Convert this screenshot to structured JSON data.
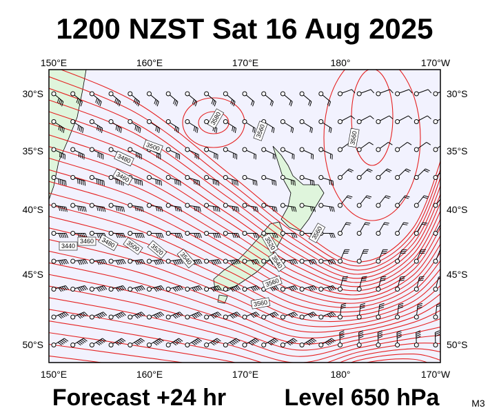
{
  "header": {
    "title": "1200 NZST Sat 16 Aug 2025"
  },
  "map": {
    "lon_labels": [
      "150°E",
      "160°E",
      "170°E",
      "180°",
      "170°W"
    ],
    "lat_labels": [
      "30°S",
      "35°S",
      "40°S",
      "45°S",
      "50°S"
    ],
    "contour_labels": [
      "3580",
      "3560",
      "3500",
      "3480",
      "3460",
      "3440",
      "3460",
      "3480",
      "3500",
      "3520",
      "3540",
      "3560",
      "3520",
      "3540",
      "3560",
      "3560",
      "3560"
    ]
  },
  "footer": {
    "forecast": "Forecast +24 hr",
    "level": "Level 650 hPa",
    "code": "M3"
  }
}
